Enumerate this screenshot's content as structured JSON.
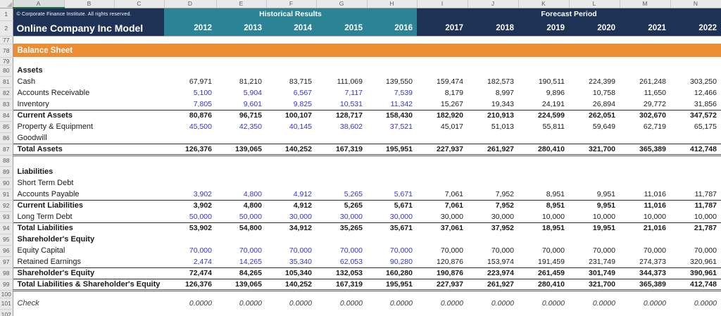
{
  "header": {
    "copyright": "© Corporate Finance Institute. All rights reserved.",
    "title": "Online Company Inc Model",
    "historical_label": "Historical Results",
    "forecast_label": "Forecast Period",
    "historical_years": [
      "2012",
      "2013",
      "2014",
      "2015",
      "2016"
    ],
    "forecast_years": [
      "2017",
      "2018",
      "2019",
      "2020",
      "2021",
      "2022"
    ],
    "row1_num": "1",
    "row2_num": "2"
  },
  "colors": {
    "navy": "#1e3255",
    "teal": "#2b8495",
    "orange": "#ee8c33",
    "input_blue": "#3333dd",
    "active_column_green": "#1e7145",
    "chrome_gray": "#e9e9e9"
  },
  "sheet": {
    "column_letters": [
      "A",
      "B",
      "C",
      "D",
      "E",
      "F",
      "G",
      "H",
      "I",
      "J",
      "K",
      "L",
      "M",
      "N"
    ],
    "rows": [
      {
        "n": "77",
        "label": "",
        "h": 9
      },
      {
        "n": "78",
        "banner": true,
        "label": "Balance Sheet",
        "h": 19
      },
      {
        "n": "79",
        "label": "",
        "h": 8
      },
      {
        "n": "80",
        "label": "Assets",
        "bold": true
      },
      {
        "n": "81",
        "label": "Cash",
        "values": [
          "67,971",
          "81,210",
          "83,715",
          "111,069",
          "139,550",
          "159,474",
          "182,573",
          "190,511",
          "224,399",
          "261,248",
          "303,250"
        ]
      },
      {
        "n": "82",
        "label": "Accounts Receivable",
        "blue": true,
        "values": [
          "5,100",
          "5,904",
          "6,567",
          "7,117",
          "7,539",
          "8,179",
          "8,997",
          "9,896",
          "10,758",
          "11,650",
          "12,466"
        ]
      },
      {
        "n": "83",
        "label": "Inventory",
        "blue": true,
        "values": [
          "7,805",
          "9,601",
          "9,825",
          "10,531",
          "11,342",
          "15,267",
          "19,343",
          "24,191",
          "26,894",
          "29,772",
          "31,856"
        ]
      },
      {
        "n": "84",
        "label": "Current Assets",
        "bold": true,
        "bt": true,
        "values": [
          "80,876",
          "96,715",
          "100,107",
          "128,717",
          "158,430",
          "182,920",
          "210,913",
          "224,599",
          "262,051",
          "302,670",
          "347,572"
        ]
      },
      {
        "n": "85",
        "label": "Property & Equipment",
        "blue": true,
        "values": [
          "45,500",
          "42,350",
          "40,145",
          "38,602",
          "37,521",
          "45,017",
          "51,013",
          "55,811",
          "59,649",
          "62,719",
          "65,175"
        ]
      },
      {
        "n": "86",
        "label": "Goodwill"
      },
      {
        "n": "87",
        "label": "Total Assets",
        "bold": true,
        "bt": true,
        "db": true,
        "values": [
          "126,376",
          "139,065",
          "140,252",
          "167,319",
          "195,951",
          "227,937",
          "261,927",
          "280,410",
          "321,700",
          "365,389",
          "412,748"
        ]
      },
      {
        "n": "88",
        "label": ""
      },
      {
        "n": "89",
        "label": "Liabilities",
        "bold": true
      },
      {
        "n": "90",
        "label": "Short Term Debt"
      },
      {
        "n": "91",
        "label": "Accounts Payable",
        "blue": true,
        "values": [
          "3,902",
          "4,800",
          "4,912",
          "5,265",
          "5,671",
          "7,061",
          "7,952",
          "8,951",
          "9,951",
          "11,016",
          "11,787"
        ]
      },
      {
        "n": "92",
        "label": "Current Liabilities",
        "bold": true,
        "bt": true,
        "values": [
          "3,902",
          "4,800",
          "4,912",
          "5,265",
          "5,671",
          "7,061",
          "7,952",
          "8,951",
          "9,951",
          "11,016",
          "11,787"
        ]
      },
      {
        "n": "93",
        "label": "Long Term Debt",
        "blue": true,
        "values": [
          "50,000",
          "50,000",
          "30,000",
          "30,000",
          "30,000",
          "30,000",
          "30,000",
          "10,000",
          "10,000",
          "10,000",
          "10,000"
        ]
      },
      {
        "n": "94",
        "label": "Total Liabilities",
        "bold": true,
        "bt": true,
        "values": [
          "53,902",
          "54,800",
          "34,912",
          "35,265",
          "35,671",
          "37,061",
          "37,952",
          "18,951",
          "19,951",
          "21,016",
          "21,787"
        ]
      },
      {
        "n": "95",
        "label": "Shareholder's Equity",
        "bold": true
      },
      {
        "n": "96",
        "label": "Equity Capital",
        "blue": true,
        "values": [
          "70,000",
          "70,000",
          "70,000",
          "70,000",
          "70,000",
          "70,000",
          "70,000",
          "70,000",
          "70,000",
          "70,000",
          "70,000"
        ]
      },
      {
        "n": "97",
        "label": "Retained Earnings",
        "blue": true,
        "values": [
          "2,474",
          "14,265",
          "35,340",
          "62,053",
          "90,280",
          "120,876",
          "153,974",
          "191,459",
          "231,749",
          "274,373",
          "320,961"
        ]
      },
      {
        "n": "98",
        "label": "Shareholder's Equity",
        "bold": true,
        "bt": true,
        "values": [
          "72,474",
          "84,265",
          "105,340",
          "132,053",
          "160,280",
          "190,876",
          "223,974",
          "261,459",
          "301,749",
          "344,373",
          "390,961"
        ]
      },
      {
        "n": "99",
        "label": "Total Liabilities & Shareholder's Equity",
        "bold": true,
        "bt": true,
        "db": true,
        "values": [
          "126,376",
          "139,065",
          "140,252",
          "167,319",
          "195,951",
          "227,937",
          "261,927",
          "280,410",
          "321,700",
          "365,389",
          "412,748"
        ]
      },
      {
        "n": "100",
        "label": "",
        "h": 11
      },
      {
        "n": "101",
        "label": "Check",
        "check": true,
        "values": [
          "0.0000",
          "0.0000",
          "0.0000",
          "0.0000",
          "0.0000",
          "0.0000",
          "0.0000",
          "0.0000",
          "0.0000",
          "0.0000",
          "0.0000"
        ]
      },
      {
        "n": "102",
        "label": ""
      }
    ]
  }
}
